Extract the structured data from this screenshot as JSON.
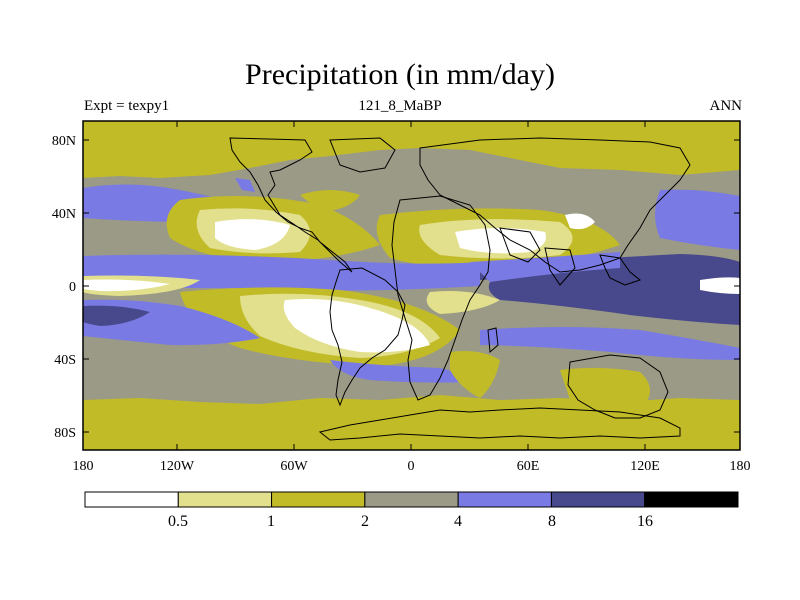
{
  "title": "Precipitation (in mm/day)",
  "subtitle_left": "Expt = texpy1",
  "subtitle_center": "121_8_MaBP",
  "subtitle_right": "ANN",
  "axes": {
    "lat_ticks": [
      "80N",
      "40N",
      "0",
      "40S",
      "80S"
    ],
    "lon_ticks": [
      "180",
      "120W",
      "60W",
      "0",
      "60E",
      "120E",
      "180"
    ]
  },
  "colorbar": {
    "levels": [
      "0.5",
      "1",
      "2",
      "4",
      "8",
      "16"
    ],
    "colors": [
      "#ffffff",
      "#e2e08c",
      "#c2bb28",
      "#9a9a86",
      "#7a7ae4",
      "#48488c",
      "#000000"
    ]
  }
}
